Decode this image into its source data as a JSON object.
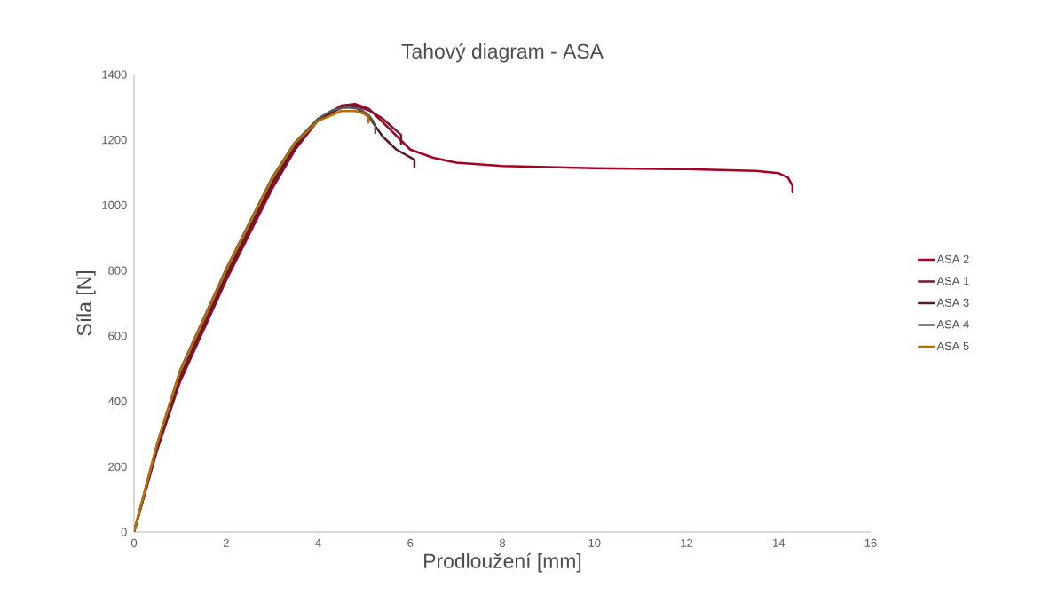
{
  "chart_data": {
    "type": "line",
    "title": "Tahový diagram -  ASA",
    "xlabel": "Prodloužení [mm]",
    "ylabel": "Síla [N]",
    "xlim": [
      0,
      16
    ],
    "xticks": [
      0,
      2,
      4,
      6,
      8,
      10,
      12,
      14,
      16
    ],
    "ylim": [
      0,
      1400
    ],
    "yticks": [
      0,
      200,
      400,
      600,
      800,
      1000,
      1200,
      1400
    ],
    "grid": false,
    "legend": "right",
    "marker": "none",
    "line_style": "solid",
    "series": [
      {
        "name": "ASA 2",
        "color": "#a50021",
        "x": [
          0,
          0.5,
          1,
          2,
          3,
          3.5,
          4,
          4.5,
          4.8,
          5.1,
          5.5,
          6,
          6.5,
          7,
          8,
          10,
          12,
          13.5,
          14,
          14.2,
          14.3,
          14.3
        ],
        "values": [
          0,
          250,
          460,
          770,
          1050,
          1170,
          1260,
          1305,
          1310,
          1295,
          1240,
          1170,
          1145,
          1130,
          1120,
          1113,
          1110,
          1105,
          1098,
          1085,
          1060,
          1040
        ]
      },
      {
        "name": "ASA 1",
        "color": "#7b1530",
        "x": [
          0,
          0.5,
          1,
          2,
          3,
          3.5,
          4,
          4.5,
          4.8,
          5.1,
          5.38,
          5.8,
          5.8
        ],
        "values": [
          0,
          255,
          470,
          780,
          1060,
          1175,
          1262,
          1300,
          1305,
          1290,
          1267,
          1215,
          1188
        ]
      },
      {
        "name": "ASA 3",
        "color": "#541a2a",
        "x": [
          0,
          0.5,
          1,
          2,
          3,
          3.5,
          4,
          4.5,
          4.8,
          5.1,
          5.4,
          5.7,
          6.09,
          6.09
        ],
        "values": [
          0,
          262,
          480,
          790,
          1070,
          1183,
          1262,
          1298,
          1300,
          1270,
          1210,
          1170,
          1139,
          1118
        ]
      },
      {
        "name": "ASA 4",
        "color": "#595959",
        "x": [
          0,
          0.5,
          1,
          2,
          3,
          3.5,
          4,
          4.3,
          4.6,
          4.9,
          5.1,
          5.24,
          5.24
        ],
        "values": [
          0,
          270,
          495,
          805,
          1085,
          1193,
          1265,
          1290,
          1300,
          1295,
          1275,
          1248,
          1221
        ]
      },
      {
        "name": "ASA 5",
        "color": "#b86e00",
        "x": [
          0,
          0.5,
          1,
          2,
          3,
          3.5,
          4,
          4.5,
          4.8,
          5.0,
          5.09,
          5.09
        ],
        "values": [
          0,
          268,
          490,
          800,
          1080,
          1190,
          1258,
          1288,
          1288,
          1280,
          1272,
          1253
        ]
      }
    ]
  }
}
